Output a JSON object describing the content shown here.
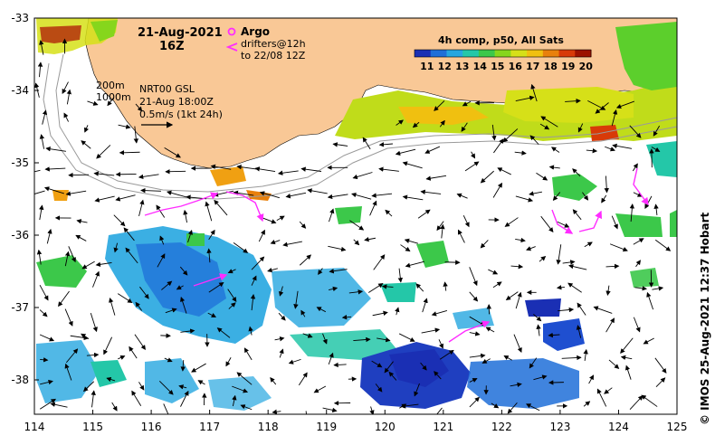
{
  "map": {
    "date": "21-Aug-2021",
    "hour": "16Z",
    "argo_label": "Argo",
    "drifters_label": "drifters@12h",
    "drifters_to": "to 22/08 12Z",
    "isobath_200": "200m",
    "isobath_1000": "1000m",
    "altimetry_title": "NRT00 GSL",
    "altimetry_time": "21-Aug 18:00Z",
    "velocity_scale": "0.5m/s (1kt 24h)",
    "colorbar_title": "4h comp, p50, All Sats",
    "colorbar_ticks": [
      "11",
      "12",
      "13",
      "14",
      "15",
      "16",
      "17",
      "18",
      "19",
      "20"
    ],
    "colorbar_colors": [
      "#1a2fb4",
      "#1f6fd8",
      "#26a6e0",
      "#24c7a8",
      "#3cc84a",
      "#86d61c",
      "#d6e018",
      "#f0c010",
      "#e8800c",
      "#d83a08",
      "#9c1200"
    ],
    "lon_ticks": [
      "114",
      "115",
      "116",
      "117",
      "118",
      "119",
      "120",
      "121",
      "122",
      "123",
      "124",
      "125"
    ],
    "lat_ticks": [
      "-33",
      "-34",
      "-35",
      "-36",
      "-37",
      "-38"
    ],
    "credit": "© IMOS 25-Aug-2021 12:37 Hobart",
    "land_color": "#f9c896",
    "drifter_color": "#ff2cff"
  }
}
